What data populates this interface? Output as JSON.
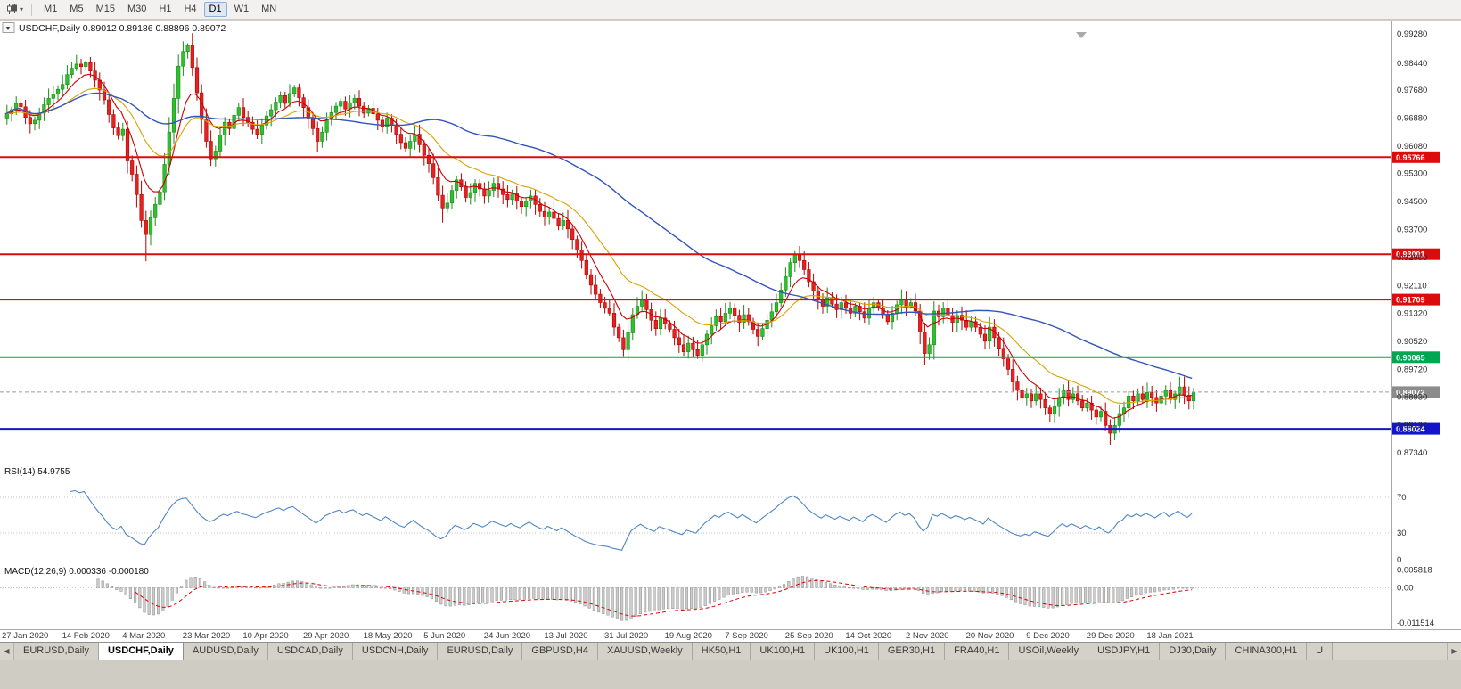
{
  "toolbar": {
    "timeframes": [
      "M1",
      "M5",
      "M15",
      "M30",
      "H1",
      "H4",
      "D1",
      "W1",
      "MN"
    ],
    "active_timeframe": "D1",
    "chart_type_icon": "candlestick-chart-icon",
    "dropdown_icon": "chevron-down-icon"
  },
  "chart": {
    "collapse_button": "▼",
    "title": {
      "symbol": "USDCHF,Daily",
      "open": "0.89012",
      "high": "0.89186",
      "low": "0.88896",
      "close": "0.89072"
    },
    "price_axis_labels": [
      "0.99280",
      "0.98440",
      "0.97680",
      "0.96880",
      "0.96080",
      "0.95300",
      "0.94500",
      "0.93700",
      "0.92900",
      "0.92110",
      "0.91320",
      "0.90520",
      "0.89720",
      "0.88930",
      "0.88130",
      "0.87340"
    ],
    "current_price": {
      "value": 0.89072,
      "label": "0.89072"
    }
  },
  "levels": [
    {
      "name": "resistance-1",
      "price": 0.95766,
      "label": "0.95766",
      "color": "#dd0c0c"
    },
    {
      "name": "resistance-2",
      "price": 0.93001,
      "label": "0.93001",
      "color": "#dd0c0c"
    },
    {
      "name": "resistance-3",
      "price": 0.91709,
      "label": "0.91709",
      "color": "#dd0c0c"
    },
    {
      "name": "support-green",
      "price": 0.90065,
      "label": "0.90065",
      "color": "#00a650"
    },
    {
      "name": "support-blue",
      "price": 0.88024,
      "label": "0.88024",
      "color": "#1414cc"
    }
  ],
  "rsi": {
    "name": "RSI(14)",
    "value": "54.9755",
    "period": 14,
    "axis_labels": [
      {
        "label": "70",
        "value": 70
      },
      {
        "label": "30",
        "value": 30
      },
      {
        "label": "0",
        "value": 0
      }
    ],
    "dotted_levels": [
      70,
      30
    ]
  },
  "macd": {
    "name": "MACD(12,26,9)",
    "value_macd": "0.000336",
    "value_signal": "-0.000180",
    "fast": 12,
    "slow": 26,
    "signal": 9,
    "axis_labels": [
      {
        "label": "0.005818",
        "value": 0.005818
      },
      {
        "label": "0.00",
        "value": 0
      },
      {
        "label": "-0.011514",
        "value": -0.011514
      }
    ]
  },
  "colors": {
    "candle_up_fill": "#2fbf2f",
    "candle_up_stroke": "#188c18",
    "candle_down_fill": "#e32222",
    "candle_down_stroke": "#b40000",
    "ma_fast": "#cc0000",
    "ma_mid": "#d9a300",
    "ma_slow": "#3355bb",
    "rsi_line": "#4e86c6",
    "macd_hist_fill": "#cccccc",
    "macd_hist_stroke": "#8f8f8f",
    "macd_signal": "#e00000",
    "current_price_line": "#9a9a9a",
    "current_price_tag": "#8c8c8c",
    "axis_text": "#2b2b2b",
    "separator": "#a8a8a8"
  },
  "chart_data": {
    "type": "candlestick",
    "symbol": "USDCHF",
    "period": "Daily",
    "first_open": 0.9688,
    "closes": [
      0.97,
      0.9712,
      0.973,
      0.972,
      0.969,
      0.9672,
      0.9682,
      0.9702,
      0.9726,
      0.9744,
      0.9756,
      0.977,
      0.9784,
      0.9812,
      0.983,
      0.9842,
      0.9835,
      0.9846,
      0.9822,
      0.9796,
      0.9768,
      0.974,
      0.9698,
      0.966,
      0.9638,
      0.9656,
      0.9566,
      0.9528,
      0.947,
      0.9396,
      0.9356,
      0.9404,
      0.9442,
      0.9478,
      0.9556,
      0.9648,
      0.9744,
      0.9836,
      0.9878,
      0.9894,
      0.9832,
      0.976,
      0.9684,
      0.9622,
      0.9572,
      0.9594,
      0.964,
      0.9676,
      0.9658,
      0.9696,
      0.9718,
      0.969,
      0.9676,
      0.9656,
      0.9642,
      0.9668,
      0.9694,
      0.9712,
      0.9734,
      0.9752,
      0.973,
      0.9758,
      0.9774,
      0.9746,
      0.9718,
      0.9688,
      0.9658,
      0.9622,
      0.9648,
      0.9684,
      0.9704,
      0.9722,
      0.9736,
      0.9714,
      0.9732,
      0.9744,
      0.9722,
      0.9702,
      0.9716,
      0.97,
      0.9682,
      0.9664,
      0.9688,
      0.9668,
      0.9642,
      0.9618,
      0.9602,
      0.9622,
      0.9642,
      0.9612,
      0.9582,
      0.9558,
      0.9518,
      0.9468,
      0.9432,
      0.9446,
      0.9482,
      0.9512,
      0.9492,
      0.9462,
      0.9476,
      0.9502,
      0.9486,
      0.9466,
      0.9482,
      0.9502,
      0.9486,
      0.947,
      0.9456,
      0.9472,
      0.9452,
      0.9436,
      0.9452,
      0.9466,
      0.9442,
      0.9422,
      0.9406,
      0.942,
      0.9402,
      0.9382,
      0.9396,
      0.9372,
      0.9342,
      0.9312,
      0.9282,
      0.9242,
      0.9212,
      0.9186,
      0.9162,
      0.9146,
      0.9132,
      0.9092,
      0.9062,
      0.9028,
      0.9076,
      0.9128,
      0.9152,
      0.9172,
      0.9142,
      0.9112,
      0.9088,
      0.9118,
      0.9102,
      0.9086,
      0.9062,
      0.9042,
      0.9022,
      0.9046,
      0.9028,
      0.9012,
      0.9042,
      0.9072,
      0.9096,
      0.9122,
      0.9108,
      0.9132,
      0.9146,
      0.9126,
      0.9106,
      0.9128,
      0.9108,
      0.9086,
      0.9066,
      0.9088,
      0.9112,
      0.9136,
      0.9162,
      0.9198,
      0.9236,
      0.9276,
      0.9298,
      0.9282,
      0.9256,
      0.9222,
      0.9196,
      0.9172,
      0.9152,
      0.9176,
      0.9158,
      0.9142,
      0.9162,
      0.9146,
      0.9132,
      0.9152,
      0.9136,
      0.9118,
      0.9146,
      0.9162,
      0.9148,
      0.9128,
      0.9108,
      0.9132,
      0.9156,
      0.9172,
      0.9152,
      0.9162,
      0.9138,
      0.9078,
      0.9017,
      0.9042,
      0.9138,
      0.9122,
      0.9146,
      0.9126,
      0.9106,
      0.9126,
      0.9112,
      0.9092,
      0.9108,
      0.9092,
      0.9072,
      0.9052,
      0.9092,
      0.9062,
      0.9032,
      0.9002,
      0.8972,
      0.8936,
      0.8912,
      0.8892,
      0.8902,
      0.8882,
      0.8902,
      0.8886,
      0.8862,
      0.8846,
      0.8866,
      0.8892,
      0.8912,
      0.8886,
      0.8902,
      0.8882,
      0.8862,
      0.8876,
      0.8856,
      0.8836,
      0.8852,
      0.8812,
      0.879,
      0.8812,
      0.8846,
      0.8862,
      0.8896,
      0.8882,
      0.8902,
      0.8886,
      0.8906,
      0.8892,
      0.8876,
      0.8896,
      0.8912,
      0.8886,
      0.8902,
      0.8922,
      0.8898,
      0.8882,
      0.89072
    ],
    "wick_overrides": {
      "17": {
        "h": 0.9852
      },
      "30": {
        "l": 0.928
      },
      "39": {
        "h": 0.9901
      },
      "94": {
        "l": 0.939
      },
      "133": {
        "l": 0.901
      },
      "149": {
        "l": 0.9002
      },
      "170": {
        "h": 0.9309
      },
      "198": {
        "l": 0.8983
      },
      "238": {
        "l": 0.8757
      },
      "256": {
        "h": 0.8919
      }
    },
    "x_labels": [
      "27 Jan 2020",
      "14 Feb 2020",
      "4 Mar 2020",
      "23 Mar 2020",
      "10 Apr 2020",
      "29 Apr 2020",
      "18 May 2020",
      "5 Jun 2020",
      "24 Jun 2020",
      "13 Jul 2020",
      "31 Jul 2020",
      "19 Aug 2020",
      "7 Sep 2020",
      "25 Sep 2020",
      "14 Oct 2020",
      "2 Nov 2020",
      "20 Nov 2020",
      "9 Dec 2020",
      "29 Dec 2020",
      "18 Jan 2021"
    ],
    "x_label_indices": [
      0,
      13,
      26,
      39,
      52,
      65,
      78,
      91,
      104,
      117,
      130,
      143,
      156,
      169,
      182,
      195,
      208,
      221,
      234,
      247
    ],
    "moving_averages": [
      {
        "name": "ma-fast",
        "period": 8
      },
      {
        "name": "ma-mid",
        "period": 21
      },
      {
        "name": "ma-slow",
        "period": 60
      }
    ]
  },
  "tabs": {
    "scroll_left": "◀",
    "scroll_right": "▶",
    "items": [
      {
        "label": "EURUSD,Daily",
        "active": false
      },
      {
        "label": "USDCHF,Daily",
        "active": true
      },
      {
        "label": "AUDUSD,Daily",
        "active": false
      },
      {
        "label": "USDCAD,Daily",
        "active": false
      },
      {
        "label": "USDCNH,Daily",
        "active": false
      },
      {
        "label": "EURUSD,Daily",
        "active": false
      },
      {
        "label": "GBPUSD,H4",
        "active": false
      },
      {
        "label": "XAUUSD,Weekly",
        "active": false
      },
      {
        "label": "HK50,H1",
        "active": false
      },
      {
        "label": "UK100,H1",
        "active": false
      },
      {
        "label": "UK100,H1",
        "active": false
      },
      {
        "label": "GER30,H1",
        "active": false
      },
      {
        "label": "FRA40,H1",
        "active": false
      },
      {
        "label": "USOil,Weekly",
        "active": false
      },
      {
        "label": "USDJPY,H1",
        "active": false
      },
      {
        "label": "DJ30,Daily",
        "active": false
      },
      {
        "label": "CHINA300,H1",
        "active": false
      },
      {
        "label": "U",
        "active": false
      }
    ]
  }
}
